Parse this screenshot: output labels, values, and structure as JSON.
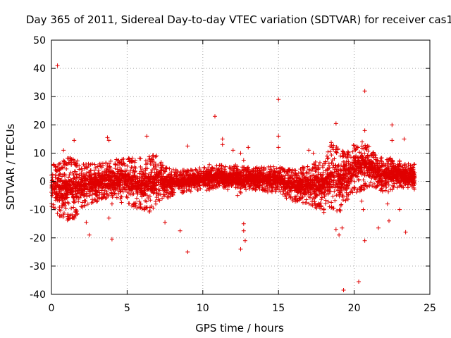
{
  "chart_data": {
    "type": "scatter",
    "title": "Day 365 of 2011, Sidereal Day-to-day VTEC variation (SDTVAR) for receiver cas1",
    "xlabel": "GPS time / hours",
    "ylabel": "SDTVAR / TECUs",
    "xlim": [
      0,
      25
    ],
    "ylim": [
      -40,
      50
    ],
    "xticks": [
      0,
      5,
      10,
      15,
      20,
      25
    ],
    "yticks": [
      -40,
      -30,
      -20,
      -10,
      0,
      10,
      20,
      30,
      40,
      50
    ],
    "grid": true,
    "marker": "+",
    "color": "#e00000",
    "series": [
      {
        "name": "SDTVAR",
        "band": [
          [
            0.0,
            -9,
            5
          ],
          [
            0.5,
            -11,
            5
          ],
          [
            1.0,
            -13,
            7
          ],
          [
            1.5,
            -12,
            7
          ],
          [
            2.0,
            -8,
            5
          ],
          [
            2.5,
            -7,
            5
          ],
          [
            3.0,
            -6,
            5
          ],
          [
            3.5,
            -5,
            6
          ],
          [
            4.0,
            -5,
            6
          ],
          [
            4.5,
            -6,
            7
          ],
          [
            5.0,
            -7,
            7
          ],
          [
            5.5,
            -8,
            7
          ],
          [
            6.0,
            -9,
            7
          ],
          [
            6.5,
            -10,
            8
          ],
          [
            7.0,
            -6,
            8
          ],
          [
            7.5,
            -5,
            4
          ],
          [
            8.0,
            -4,
            3
          ],
          [
            8.5,
            -3,
            3
          ],
          [
            9.0,
            -3,
            3
          ],
          [
            9.5,
            -2,
            3
          ],
          [
            10.0,
            -2,
            4
          ],
          [
            10.5,
            -2,
            5
          ],
          [
            11.0,
            -1,
            5
          ],
          [
            11.5,
            -2,
            4
          ],
          [
            12.0,
            -2,
            5
          ],
          [
            12.5,
            -3,
            4
          ],
          [
            13.0,
            -2,
            4
          ],
          [
            13.5,
            -2,
            4
          ],
          [
            14.0,
            -2,
            4
          ],
          [
            14.5,
            -3,
            4
          ],
          [
            15.0,
            -2,
            4
          ],
          [
            15.5,
            -5,
            3
          ],
          [
            16.0,
            -6,
            3
          ],
          [
            16.5,
            -7,
            4
          ],
          [
            17.0,
            -7,
            4
          ],
          [
            17.5,
            -9,
            6
          ],
          [
            18.0,
            -9,
            5
          ],
          [
            18.5,
            -8,
            13
          ],
          [
            19.0,
            -10,
            10
          ],
          [
            19.5,
            -6,
            9
          ],
          [
            20.0,
            -3,
            12
          ],
          [
            20.5,
            -2,
            13
          ],
          [
            21.0,
            -1,
            11
          ],
          [
            21.5,
            -1,
            8
          ],
          [
            22.0,
            -3,
            7
          ],
          [
            22.5,
            -2,
            7
          ],
          [
            23.0,
            -1,
            6
          ],
          [
            23.5,
            -2,
            5
          ],
          [
            24.0,
            -2,
            5
          ]
        ],
        "outliers": [
          [
            0.4,
            41
          ],
          [
            0.8,
            11
          ],
          [
            1.5,
            14.5
          ],
          [
            3.7,
            15.5
          ],
          [
            3.8,
            14.5
          ],
          [
            4.0,
            -20.5
          ],
          [
            3.8,
            -13
          ],
          [
            2.5,
            -19
          ],
          [
            2.3,
            -14.5
          ],
          [
            4.0,
            -8
          ],
          [
            6.3,
            16
          ],
          [
            7.5,
            -14.5
          ],
          [
            8.5,
            -17.5
          ],
          [
            9.0,
            -25
          ],
          [
            9.0,
            12.5
          ],
          [
            10.8,
            23
          ],
          [
            11.3,
            15
          ],
          [
            11.3,
            13
          ],
          [
            12.0,
            11
          ],
          [
            12.5,
            -24
          ],
          [
            12.7,
            -17.5
          ],
          [
            12.7,
            -15
          ],
          [
            12.8,
            -21
          ],
          [
            12.7,
            7.5
          ],
          [
            13.0,
            12
          ],
          [
            12.5,
            10
          ],
          [
            12.3,
            -5
          ],
          [
            15.0,
            29
          ],
          [
            15.0,
            16
          ],
          [
            15.0,
            12
          ],
          [
            17.0,
            11
          ],
          [
            17.3,
            10
          ],
          [
            18.0,
            -11
          ],
          [
            18.8,
            20.5
          ],
          [
            19.0,
            -19
          ],
          [
            19.2,
            -16.5
          ],
          [
            19.3,
            -38.5
          ],
          [
            18.8,
            -17
          ],
          [
            20.3,
            -35.5
          ],
          [
            20.7,
            32
          ],
          [
            20.7,
            18
          ],
          [
            20.7,
            -21
          ],
          [
            20.6,
            -10
          ],
          [
            20.5,
            -7
          ],
          [
            21.6,
            -16.5
          ],
          [
            22.3,
            -14
          ],
          [
            22.5,
            20
          ],
          [
            22.5,
            14.5
          ],
          [
            23.3,
            15
          ],
          [
            23.4,
            -18
          ],
          [
            23.0,
            -10
          ],
          [
            22.2,
            -8
          ]
        ]
      }
    ]
  }
}
